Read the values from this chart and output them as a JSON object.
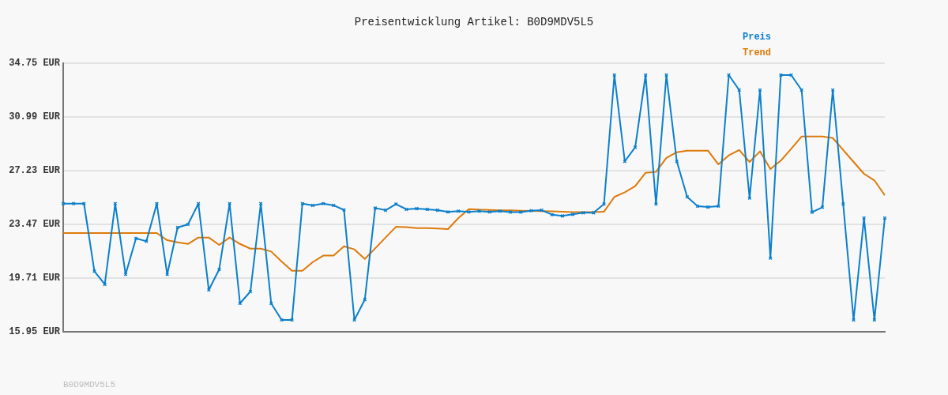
{
  "chart_data": {
    "type": "line",
    "title": "Preisentwicklung Artikel: B0D9MDV5L5",
    "annotations": [
      "B0D9MDV5L5"
    ],
    "categories": [
      null,
      null,
      null,
      null,
      null,
      null,
      null,
      null,
      null,
      null,
      null,
      null,
      null,
      null,
      null,
      null,
      null,
      null,
      null,
      null,
      null,
      null,
      null,
      null,
      null,
      null,
      null,
      null,
      null,
      null,
      null,
      null,
      null,
      null,
      null,
      null,
      null,
      null,
      null,
      null,
      null,
      null,
      null,
      null,
      null,
      null,
      null,
      null,
      null,
      null,
      null,
      null,
      null,
      null,
      null,
      null,
      null,
      null,
      null,
      null,
      null,
      null,
      null,
      null,
      null,
      null,
      null,
      null,
      null,
      null,
      null,
      null,
      null,
      null,
      null,
      null,
      null,
      null,
      null,
      null
    ],
    "series": [
      {
        "name": "Preis",
        "color": "#0b7fcc",
        "marker": "cross",
        "values": [
          24.92,
          24.92,
          24.92,
          20.19,
          19.27,
          24.92,
          19.97,
          22.49,
          22.29,
          24.92,
          19.97,
          23.25,
          23.47,
          24.92,
          18.88,
          20.32,
          24.92,
          17.94,
          18.77,
          24.92,
          17.94,
          16.78,
          16.78,
          24.92,
          24.8,
          24.92,
          24.8,
          24.48,
          16.78,
          18.2,
          24.61,
          24.46,
          24.89,
          24.52,
          24.57,
          24.52,
          24.46,
          24.34,
          24.4,
          24.34,
          24.4,
          24.34,
          24.4,
          24.33,
          24.33,
          24.42,
          24.46,
          24.15,
          24.06,
          24.17,
          24.28,
          24.28,
          24.89,
          33.92,
          27.88,
          28.87,
          33.92,
          24.89,
          33.92,
          27.88,
          25.39,
          24.74,
          24.68,
          24.74,
          33.92,
          32.87,
          25.31,
          32.87,
          21.11,
          33.92,
          33.92,
          32.87,
          24.32,
          24.67,
          32.87,
          24.89,
          16.78,
          23.91,
          16.78,
          23.91
        ]
      },
      {
        "name": "Trend",
        "color": "#dd7a0a",
        "values": [
          22.86,
          22.86,
          22.86,
          22.86,
          22.86,
          22.86,
          22.86,
          22.86,
          22.86,
          22.86,
          22.36,
          22.21,
          22.1,
          22.55,
          22.55,
          22.03,
          22.55,
          22.1,
          21.77,
          21.77,
          21.57,
          20.87,
          20.22,
          20.22,
          20.83,
          21.28,
          21.28,
          21.94,
          21.72,
          21.05,
          21.79,
          22.55,
          23.3,
          23.27,
          23.21,
          23.21,
          23.18,
          23.14,
          23.91,
          24.54,
          24.5,
          24.48,
          24.45,
          24.45,
          24.43,
          24.41,
          24.4,
          24.38,
          24.36,
          24.33,
          24.33,
          24.33,
          24.36,
          25.39,
          25.72,
          26.14,
          27.08,
          27.14,
          28.12,
          28.52,
          28.63,
          28.63,
          28.63,
          27.67,
          28.3,
          28.67,
          27.84,
          28.58,
          27.34,
          27.93,
          28.76,
          29.62,
          29.62,
          29.62,
          29.51,
          28.67,
          27.84,
          27.01,
          26.55,
          25.5
        ]
      }
    ],
    "ylim": [
      15.95,
      34.75
    ],
    "yticks": [
      {
        "value": 15.95,
        "label": "15.95 EUR"
      },
      {
        "value": 19.71,
        "label": "19.71 EUR"
      },
      {
        "value": 23.47,
        "label": "23.47 EUR"
      },
      {
        "value": 27.23,
        "label": "27.23 EUR"
      },
      {
        "value": 30.99,
        "label": "30.99 EUR"
      },
      {
        "value": 34.75,
        "label": "34.75 EUR"
      }
    ],
    "grid": "y",
    "legend": "top right"
  }
}
